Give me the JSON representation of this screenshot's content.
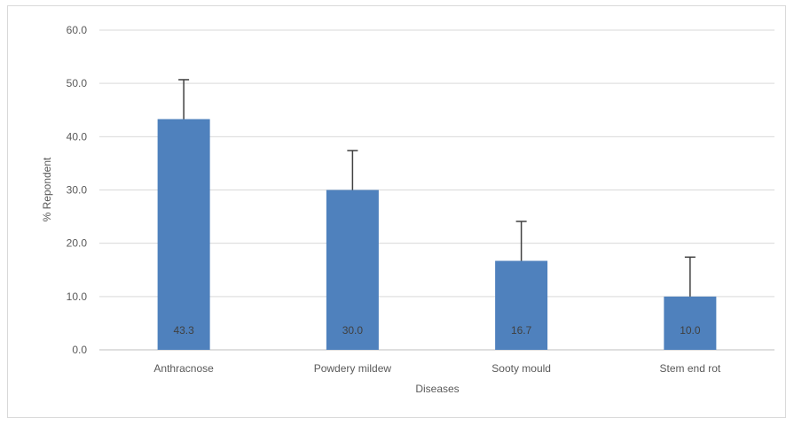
{
  "chart_data": {
    "type": "bar",
    "categories": [
      "Anthracnose",
      "Powdery mildew",
      "Sooty mould",
      "Stem end rot"
    ],
    "values": [
      43.3,
      30.0,
      16.7,
      10.0
    ],
    "error_plus": [
      7.4,
      7.4,
      7.4,
      7.4
    ],
    "data_labels": [
      "43.3",
      "30.0",
      "16.7",
      "10.0"
    ],
    "title": "",
    "xlabel": "Diseases",
    "ylabel": "% Repondent",
    "ylim": [
      0,
      60
    ],
    "yticks": [
      "0.0",
      "10.0",
      "20.0",
      "30.0",
      "40.0",
      "50.0",
      "60.0"
    ],
    "grid": true,
    "legend": "none",
    "colors": {
      "bar": "#4f81bd",
      "error_bar": "#404040",
      "grid": "#d9d9d9",
      "axis": "#bfbfbf"
    }
  }
}
